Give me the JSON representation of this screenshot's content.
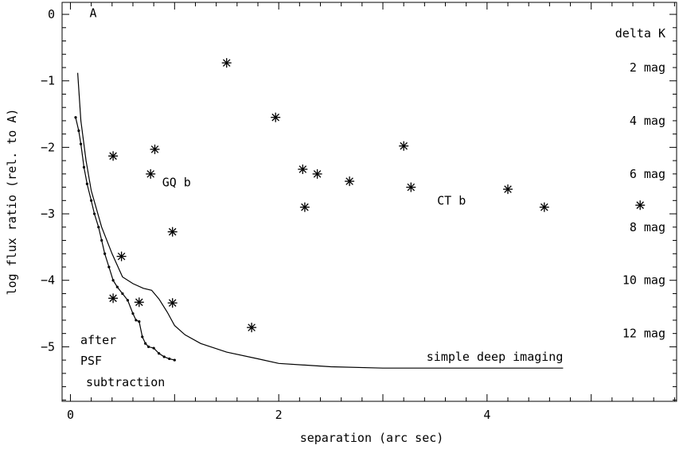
{
  "chart_data": {
    "type": "scatter",
    "xlabel": "separation (arc sec)",
    "ylabel": "log flux ratio (rel. to A)",
    "xlim": [
      -0.08,
      5.82
    ],
    "ylim": [
      -5.82,
      0.18
    ],
    "x_ticks": [
      0,
      2,
      4
    ],
    "y_ticks": [
      0,
      -1,
      -2,
      -3,
      -4,
      -5
    ],
    "grid": false,
    "primary_label": {
      "text": "A",
      "x": 0.26,
      "y": 0.02
    },
    "annotations": [
      {
        "text": "GQ b",
        "x": 0.98,
        "y": -2.53
      },
      {
        "text": "CT b",
        "x": 3.62,
        "y": -2.8
      },
      {
        "text": "simple deep imaging",
        "x": 4.73,
        "y": -5.15
      }
    ],
    "after_psf_label": [
      "after",
      "PSF",
      "subtraction"
    ],
    "delta_k_header": "delta K",
    "delta_k_labels": [
      {
        "text": "2 mag",
        "y": -0.8
      },
      {
        "text": "4 mag",
        "y": -1.6
      },
      {
        "text": "6 mag",
        "y": -2.4
      },
      {
        "text": "8 mag",
        "y": -3.2
      },
      {
        "text": "10 mag",
        "y": -4.0
      },
      {
        "text": "12 mag",
        "y": -4.8
      }
    ],
    "series": [
      {
        "name": "",
        "marker": "asterisk",
        "points": [
          {
            "x": 1.5,
            "y": -0.73
          },
          {
            "x": 1.97,
            "y": -1.55
          },
          {
            "x": 0.41,
            "y": -2.13
          },
          {
            "x": 0.81,
            "y": -2.03
          },
          {
            "x": 0.77,
            "y": -2.4
          },
          {
            "x": 2.23,
            "y": -2.33
          },
          {
            "x": 2.37,
            "y": -2.4
          },
          {
            "x": 2.25,
            "y": -2.9
          },
          {
            "x": 2.68,
            "y": -2.51
          },
          {
            "x": 3.2,
            "y": -1.98
          },
          {
            "x": 3.27,
            "y": -2.6
          },
          {
            "x": 4.2,
            "y": -2.63
          },
          {
            "x": 4.55,
            "y": -2.9
          },
          {
            "x": 5.47,
            "y": -2.87
          },
          {
            "x": 0.98,
            "y": -3.27
          },
          {
            "x": 0.49,
            "y": -3.64
          },
          {
            "x": 0.41,
            "y": -4.27
          },
          {
            "x": 0.66,
            "y": -4.33
          },
          {
            "x": 0.98,
            "y": -4.34
          },
          {
            "x": 1.74,
            "y": -4.71
          }
        ]
      },
      {
        "name": "",
        "type": "line",
        "points": [
          {
            "x": 0.07,
            "y": -0.88
          },
          {
            "x": 0.1,
            "y": -1.6
          },
          {
            "x": 0.15,
            "y": -2.2
          },
          {
            "x": 0.2,
            "y": -2.65
          },
          {
            "x": 0.3,
            "y": -3.2
          },
          {
            "x": 0.4,
            "y": -3.6
          },
          {
            "x": 0.5,
            "y": -3.95
          },
          {
            "x": 0.6,
            "y": -4.05
          },
          {
            "x": 0.7,
            "y": -4.12
          },
          {
            "x": 0.78,
            "y": -4.15
          },
          {
            "x": 0.85,
            "y": -4.28
          },
          {
            "x": 0.93,
            "y": -4.48
          },
          {
            "x": 1.0,
            "y": -4.68
          },
          {
            "x": 1.1,
            "y": -4.82
          },
          {
            "x": 1.25,
            "y": -4.95
          },
          {
            "x": 1.5,
            "y": -5.08
          },
          {
            "x": 1.8,
            "y": -5.18
          },
          {
            "x": 2.0,
            "y": -5.25
          },
          {
            "x": 2.5,
            "y": -5.3
          },
          {
            "x": 3.0,
            "y": -5.32
          },
          {
            "x": 4.0,
            "y": -5.32
          },
          {
            "x": 4.73,
            "y": -5.32
          }
        ]
      },
      {
        "name": "",
        "type": "line",
        "markers": "dots",
        "points": [
          {
            "x": 0.05,
            "y": -1.55
          },
          {
            "x": 0.08,
            "y": -1.75
          },
          {
            "x": 0.1,
            "y": -1.95
          },
          {
            "x": 0.13,
            "y": -2.3
          },
          {
            "x": 0.16,
            "y": -2.55
          },
          {
            "x": 0.2,
            "y": -2.8
          },
          {
            "x": 0.23,
            "y": -3.0
          },
          {
            "x": 0.27,
            "y": -3.2
          },
          {
            "x": 0.3,
            "y": -3.4
          },
          {
            "x": 0.33,
            "y": -3.6
          },
          {
            "x": 0.37,
            "y": -3.8
          },
          {
            "x": 0.41,
            "y": -4.0
          },
          {
            "x": 0.45,
            "y": -4.1
          },
          {
            "x": 0.5,
            "y": -4.2
          },
          {
            "x": 0.55,
            "y": -4.3
          },
          {
            "x": 0.6,
            "y": -4.5
          },
          {
            "x": 0.63,
            "y": -4.6
          },
          {
            "x": 0.66,
            "y": -4.62
          },
          {
            "x": 0.69,
            "y": -4.85
          },
          {
            "x": 0.72,
            "y": -4.95
          },
          {
            "x": 0.75,
            "y": -5.0
          },
          {
            "x": 0.8,
            "y": -5.02
          },
          {
            "x": 0.85,
            "y": -5.1
          },
          {
            "x": 0.9,
            "y": -5.15
          },
          {
            "x": 0.95,
            "y": -5.18
          },
          {
            "x": 1.0,
            "y": -5.2
          }
        ]
      }
    ]
  }
}
